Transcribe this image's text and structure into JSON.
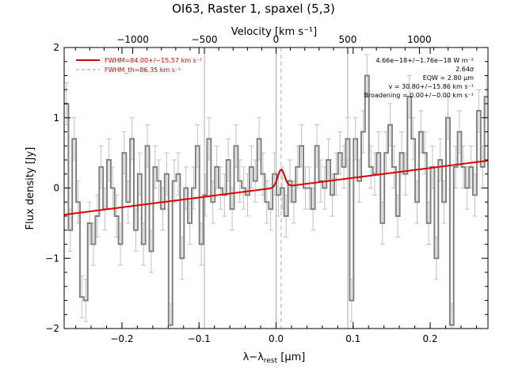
{
  "chart_data": {
    "type": "line",
    "title": "OI63, Raster 1, spaxel (5,3)",
    "xlabel_main": "λ−λ",
    "xlabel_sub": "rest",
    "xlabel_unit": " [μm]",
    "ylabel": "Flux density [Jy]",
    "top_axis_label": "Velocity [km s⁻¹]",
    "xlim": [
      -0.275,
      0.275
    ],
    "ylim": [
      -2.0,
      2.0
    ],
    "xticks": [
      "−0.2",
      "−0.1",
      "0.0",
      "0.1",
      "0.2"
    ],
    "yticks": [
      "−2",
      "−1",
      "0",
      "1",
      "2"
    ],
    "top_ticks": [
      "−1000",
      "−500",
      "0",
      "500",
      "1000"
    ],
    "legend": {
      "position": "top-left",
      "entries": [
        {
          "label": "FWHM=84.00+/−15.57 km s⁻¹",
          "color": "#dd0000",
          "style": "solid"
        },
        {
          "label": "FWHM_th=86.35 km s⁻¹",
          "color": "#999999",
          "style": "dashed"
        }
      ]
    },
    "annotations": [
      "4.66e−18+/−1.76e−18 W m⁻²",
      "2.64σ",
      "EQW = 2.80 μm",
      "v = 30.80+/−15.86 km s⁻¹",
      "Broadening = 0.00+/−0.00 km s⁻¹"
    ],
    "vertical_lines": [
      {
        "x": -0.093,
        "style": "solid"
      },
      {
        "x": 0.0,
        "style": "solid"
      },
      {
        "x": 0.0066,
        "style": "dashed"
      },
      {
        "x": 0.093,
        "style": "solid"
      }
    ],
    "series": [
      {
        "type": "step",
        "color": "#808080",
        "x": [
          -0.272,
          -0.267,
          -0.262,
          -0.257,
          -0.252,
          -0.247,
          -0.242,
          -0.237,
          -0.232,
          -0.227,
          -0.222,
          -0.217,
          -0.212,
          -0.207,
          -0.202,
          -0.197,
          -0.192,
          -0.187,
          -0.182,
          -0.177,
          -0.172,
          -0.167,
          -0.162,
          -0.157,
          -0.152,
          -0.147,
          -0.142,
          -0.137,
          -0.132,
          -0.127,
          -0.122,
          -0.117,
          -0.112,
          -0.107,
          -0.102,
          -0.097,
          -0.092,
          -0.087,
          -0.082,
          -0.077,
          -0.072,
          -0.067,
          -0.062,
          -0.057,
          -0.052,
          -0.047,
          -0.042,
          -0.037,
          -0.032,
          -0.027,
          -0.022,
          -0.017,
          -0.012,
          -0.007,
          -0.002,
          0.003,
          0.008,
          0.013,
          0.018,
          0.023,
          0.028,
          0.033,
          0.038,
          0.043,
          0.048,
          0.053,
          0.058,
          0.063,
          0.068,
          0.073,
          0.078,
          0.083,
          0.088,
          0.093,
          0.098,
          0.103,
          0.108,
          0.113,
          0.118,
          0.123,
          0.128,
          0.133,
          0.138,
          0.143,
          0.148,
          0.153,
          0.158,
          0.163,
          0.168,
          0.173,
          0.178,
          0.183,
          0.188,
          0.193,
          0.198,
          0.203,
          0.208,
          0.213,
          0.218,
          0.223,
          0.228,
          0.233,
          0.238,
          0.243,
          0.248,
          0.253,
          0.258,
          0.263,
          0.268,
          0.273
        ],
        "y": [
          1.2,
          -0.6,
          0.7,
          -0.2,
          -1.55,
          -1.6,
          -0.5,
          -0.8,
          -0.4,
          0.3,
          -0.3,
          0.4,
          0.0,
          -0.4,
          -0.8,
          0.5,
          -0.2,
          0.7,
          -0.6,
          0.2,
          -0.8,
          0.6,
          -0.9,
          0.3,
          0.1,
          -0.3,
          0.2,
          -1.95,
          0.1,
          0.2,
          -1.0,
          0.0,
          -0.5,
          0.0,
          0.6,
          -0.8,
          -0.1,
          0.7,
          -0.2,
          0.3,
          0.0,
          -0.1,
          0.4,
          -0.3,
          0.6,
          0.1,
          0.0,
          -0.1,
          0.3,
          0.1,
          0.7,
          0.2,
          -0.2,
          -0.3,
          0.2,
          -0.1,
          0.0,
          -0.4,
          0.1,
          -0.2,
          0.3,
          0.6,
          0.0,
          0.0,
          -0.3,
          0.6,
          0.1,
          0.0,
          0.4,
          -0.1,
          0.2,
          0.5,
          0.3,
          0.7,
          -1.6,
          0.7,
          0.1,
          0.8,
          1.6,
          0.3,
          0.2,
          0.5,
          -0.5,
          0.5,
          0.9,
          0.3,
          -0.4,
          0.5,
          0.2,
          1.3,
          0.7,
          -0.2,
          0.8,
          0.5,
          -0.5,
          0.3,
          -1.0,
          0.4,
          -0.2,
          1.0,
          -1.95,
          0.3,
          0.8,
          0.3,
          0.0,
          0.3,
          -0.1,
          1.1,
          0.3,
          1.3
        ],
        "error": 0.3
      },
      {
        "type": "line",
        "name": "FWHM=84.00+/−15.57 km s⁻¹",
        "color": "#dd0000",
        "model": {
          "baseline_left": -0.38,
          "baseline_right": 0.39,
          "peak_center": 0.0066,
          "peak_height": 0.25,
          "peak_sigma": 0.0045
        }
      }
    ]
  }
}
